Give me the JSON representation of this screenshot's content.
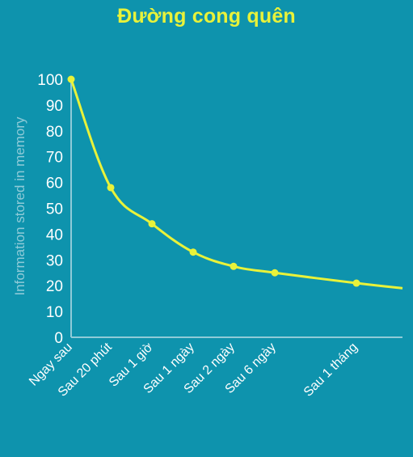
{
  "chart_data": {
    "type": "line",
    "title": "Đường cong quên",
    "xlabel": "",
    "ylabel": "Information stored in memory",
    "categories": [
      "Ngay sau",
      "Sau 20 phút",
      "Sau 1 giờ",
      "Sau 1 ngày",
      "Sau 2 ngày",
      "Sau 6 ngày",
      "Sau 1 tháng"
    ],
    "y_ticks": [
      "100",
      "90",
      "80",
      "70",
      "60",
      "50",
      "40",
      "30",
      "20",
      "10",
      "0"
    ],
    "ylim": [
      0,
      100
    ],
    "grid": false,
    "series": [
      {
        "values": [
          100,
          58,
          44,
          33,
          27.5,
          25,
          21
        ]
      }
    ],
    "colors": {
      "background": "#0E93AD",
      "line": "#E8F23A",
      "axis": "#8FCBD8",
      "title": "#E8F23A"
    }
  }
}
